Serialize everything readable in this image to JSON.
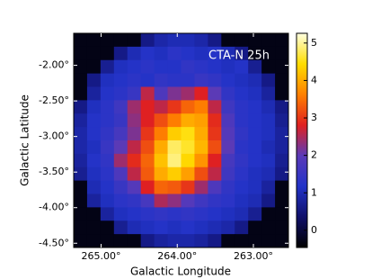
{
  "chart_data": {
    "type": "heatmap",
    "annotation": "CTA-N 25h",
    "x_label": "Galactic Longitude",
    "y_label": "Galactic Latitude",
    "xlim": [
      265.36,
      262.54
    ],
    "ylim": [
      -1.55,
      -4.56
    ],
    "xticks": [
      {
        "value": 265,
        "label": "265.00°"
      },
      {
        "value": 264,
        "label": "264.00°"
      },
      {
        "value": 263,
        "label": "263.00°"
      }
    ],
    "yticks": [
      {
        "value": -2,
        "label": "-2.00°"
      },
      {
        "value": -2.5,
        "label": "-2.50°"
      },
      {
        "value": -3,
        "label": "-3.00°"
      },
      {
        "value": -3.5,
        "label": "-3.50°"
      },
      {
        "value": -4,
        "label": "-4.00°"
      },
      {
        "value": -4.5,
        "label": "-4.50°"
      }
    ],
    "zlim": [
      -0.46,
      5.26
    ],
    "zticks": [
      0,
      1,
      2,
      3,
      4,
      5
    ],
    "colormap": [
      "#000000",
      "#10106a",
      "#2233c8",
      "#5a3ab8",
      "#e02020",
      "#ff8000",
      "#ffdd00",
      "#ffffe0"
    ],
    "z": [
      [
        -0.3,
        -0.3,
        -0.3,
        -0.3,
        -0.3,
        0.6,
        0.9,
        1.0,
        1.0,
        0.9,
        0.6,
        -0.3,
        -0.3,
        -0.3,
        -0.3,
        -0.3
      ],
      [
        -0.3,
        -0.3,
        -0.3,
        0.6,
        1.0,
        1.2,
        1.1,
        1.3,
        1.2,
        1.1,
        1.2,
        1.0,
        0.6,
        -0.3,
        -0.3,
        -0.3
      ],
      [
        -0.3,
        -0.3,
        0.7,
        1.1,
        1.2,
        1.3,
        1.2,
        1.2,
        1.4,
        1.3,
        1.2,
        1.1,
        1.2,
        0.7,
        -0.3,
        -0.3
      ],
      [
        -0.3,
        0.6,
        1.1,
        1.2,
        1.3,
        1.2,
        1.4,
        1.3,
        1.3,
        1.5,
        1.4,
        1.2,
        1.1,
        1.0,
        0.6,
        -0.3
      ],
      [
        -0.3,
        0.8,
        1.2,
        1.3,
        1.5,
        2.6,
        1.8,
        2.2,
        2.4,
        2.8,
        2.0,
        1.4,
        1.2,
        1.1,
        0.8,
        -0.3
      ],
      [
        0.6,
        1.1,
        1.3,
        1.6,
        2.4,
        2.8,
        2.6,
        3.0,
        3.4,
        3.6,
        2.6,
        1.6,
        1.3,
        1.2,
        1.0,
        0.6
      ],
      [
        0.8,
        1.2,
        1.3,
        1.5,
        2.3,
        2.8,
        3.2,
        3.6,
        4.0,
        3.9,
        2.9,
        1.8,
        1.3,
        1.2,
        1.1,
        0.7
      ],
      [
        0.9,
        1.2,
        1.4,
        1.7,
        2.2,
        3.0,
        3.6,
        4.3,
        4.5,
        4.0,
        3.0,
        1.9,
        1.4,
        1.2,
        1.1,
        0.8
      ],
      [
        0.9,
        1.1,
        1.5,
        2.0,
        2.6,
        3.2,
        4.0,
        4.8,
        4.6,
        4.1,
        3.2,
        2.0,
        1.3,
        1.2,
        1.0,
        0.8
      ],
      [
        0.8,
        1.2,
        1.4,
        2.4,
        2.9,
        3.4,
        4.2,
        4.9,
        4.4,
        3.8,
        2.8,
        1.7,
        1.4,
        1.2,
        1.1,
        0.7
      ],
      [
        0.7,
        1.1,
        1.3,
        1.8,
        2.6,
        3.3,
        4.0,
        4.3,
        3.9,
        3.2,
        2.6,
        1.6,
        1.3,
        1.1,
        1.0,
        0.6
      ],
      [
        -0.3,
        1.0,
        1.2,
        1.5,
        1.9,
        2.8,
        3.4,
        3.3,
        3.0,
        2.4,
        1.8,
        1.4,
        1.2,
        1.1,
        0.8,
        -0.3
      ],
      [
        -0.3,
        0.8,
        1.1,
        1.3,
        1.4,
        1.7,
        2.5,
        2.3,
        1.9,
        1.6,
        1.4,
        1.3,
        1.1,
        1.0,
        0.6,
        -0.3
      ],
      [
        -0.3,
        -0.3,
        0.8,
        1.1,
        1.2,
        1.3,
        1.4,
        1.3,
        1.4,
        1.3,
        1.2,
        1.1,
        1.0,
        0.7,
        -0.3,
        -0.3
      ],
      [
        -0.3,
        -0.3,
        -0.3,
        0.7,
        1.0,
        1.1,
        1.2,
        1.1,
        1.2,
        1.1,
        1.0,
        0.9,
        0.6,
        -0.3,
        -0.3,
        -0.3
      ],
      [
        -0.3,
        -0.3,
        -0.3,
        -0.3,
        -0.3,
        0.6,
        0.8,
        0.9,
        0.9,
        0.8,
        0.6,
        -0.3,
        -0.3,
        -0.3,
        -0.3,
        -0.3
      ]
    ]
  }
}
